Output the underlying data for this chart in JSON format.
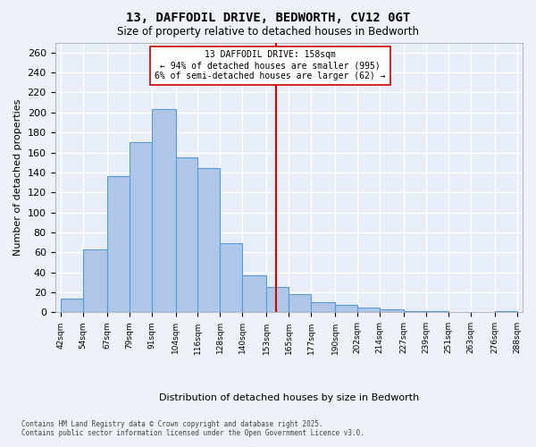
{
  "title_line1": "13, DAFFODIL DRIVE, BEDWORTH, CV12 0GT",
  "title_line2": "Size of property relative to detached houses in Bedworth",
  "xlabel": "Distribution of detached houses by size in Bedworth",
  "ylabel": "Number of detached properties",
  "annotation_title": "13 DAFFODIL DRIVE: 158sqm",
  "annotation_line2": "← 94% of detached houses are smaller (995)",
  "annotation_line3": "6% of semi-detached houses are larger (62) →",
  "footer_line1": "Contains HM Land Registry data © Crown copyright and database right 2025.",
  "footer_line2": "Contains public sector information licensed under the Open Government Licence v3.0.",
  "bar_color": "#aec6e8",
  "bar_edge_color": "#5b9bd5",
  "background_color": "#e8eef7",
  "grid_color": "#ffffff",
  "vline_value": 158,
  "vline_color": "#cc0000",
  "tick_labels": [
    "42sqm",
    "54sqm",
    "67sqm",
    "79sqm",
    "91sqm",
    "104sqm",
    "116sqm",
    "128sqm",
    "140sqm",
    "153sqm",
    "165sqm",
    "177sqm",
    "190sqm",
    "202sqm",
    "214sqm",
    "227sqm",
    "239sqm",
    "251sqm",
    "263sqm",
    "276sqm",
    "288sqm"
  ],
  "bin_edges": [
    42,
    54,
    67,
    79,
    91,
    104,
    116,
    128,
    140,
    153,
    165,
    177,
    190,
    202,
    214,
    227,
    239,
    251,
    263,
    276,
    288
  ],
  "values": [
    14,
    63,
    136,
    170,
    203,
    155,
    144,
    69,
    37,
    25,
    18,
    10,
    8,
    5,
    3,
    1,
    1,
    0,
    0,
    1
  ],
  "ylim": [
    0,
    270
  ],
  "yticks": [
    0,
    20,
    40,
    60,
    80,
    100,
    120,
    140,
    160,
    180,
    200,
    220,
    240,
    260
  ]
}
